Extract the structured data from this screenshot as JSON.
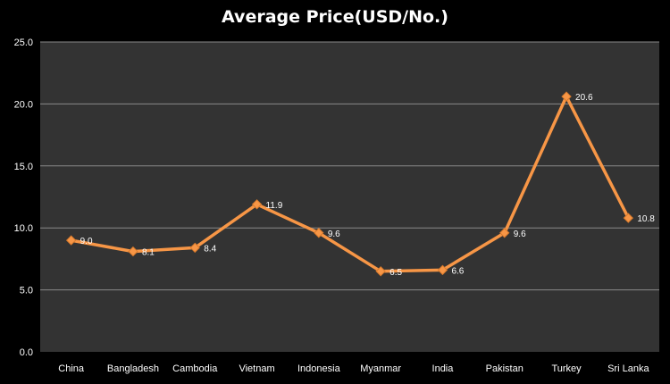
{
  "chart_data": {
    "type": "line",
    "title": "Average Price(USD/No.)",
    "xlabel": "",
    "ylabel": "",
    "categories": [
      "China",
      "Bangladesh",
      "Cambodia",
      "Vietnam",
      "Indonesia",
      "Myanmar",
      "India",
      "Pakistan",
      "Turkey",
      "Sri Lanka"
    ],
    "series": [
      {
        "values": [
          9.0,
          8.1,
          8.4,
          11.9,
          9.6,
          6.5,
          6.6,
          9.6,
          20.6,
          10.8
        ]
      }
    ],
    "value_labels": [
      "9.0",
      "8.1",
      "8.4",
      "11.9",
      "9.6",
      "6.5",
      "6.6",
      "9.6",
      "20.6",
      "10.8"
    ],
    "ylim": [
      0,
      25
    ],
    "yticks": [
      0,
      5,
      10,
      15,
      20,
      25
    ],
    "ytick_labels": [
      "0.0",
      "5.0",
      "10.0",
      "15.0",
      "20.0",
      "25.0"
    ],
    "grid": true,
    "legend": "none",
    "colors": {
      "background": "#000000",
      "plot_area": "#333333",
      "gridline": "#8a8a8a",
      "line": "#f79646",
      "marker_fill": "#f79646",
      "text": "#ffffff"
    }
  }
}
